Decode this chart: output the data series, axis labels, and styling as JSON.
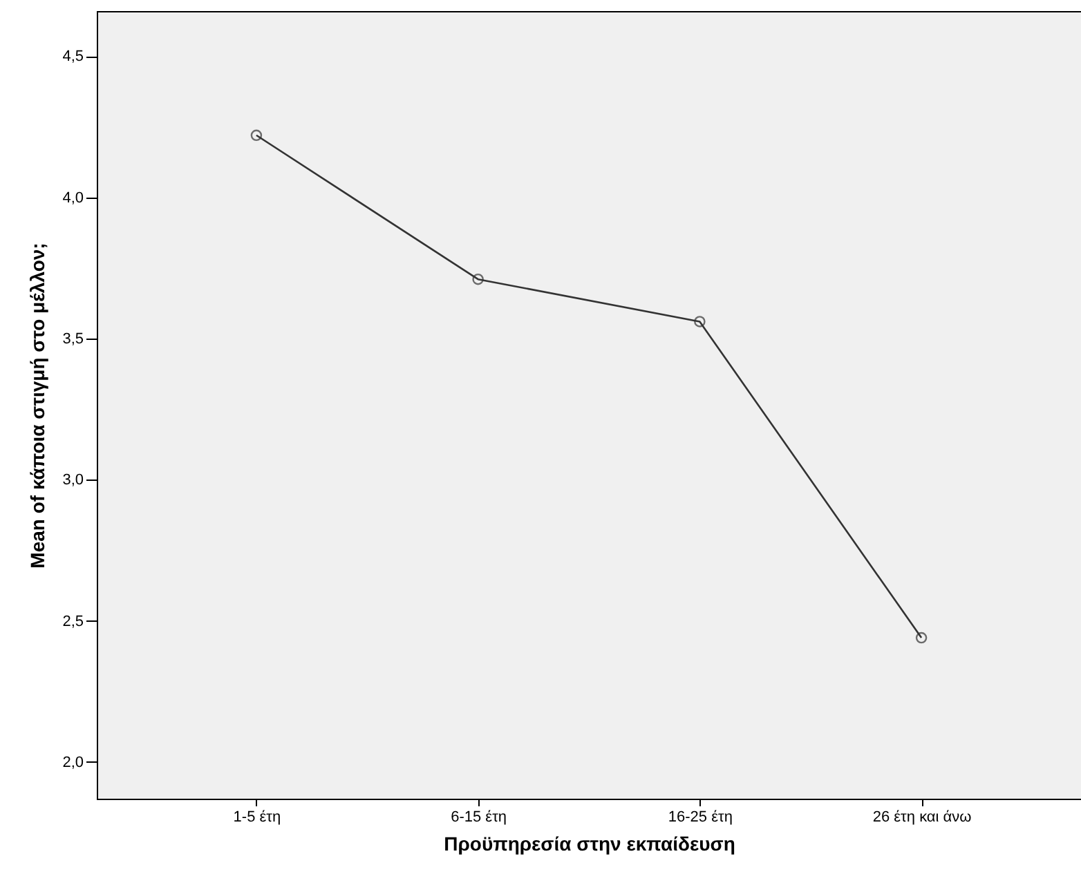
{
  "chart_data": {
    "type": "line",
    "xlabel": "Προϋπηρεσία στην εκπαίδευση",
    "ylabel": "Mean of κάποια στιγμή στο μέλλον;",
    "categories": [
      "1-5 έτη",
      "6-15 έτη",
      "16-25 έτη",
      "26 έτη και άνω"
    ],
    "series": [
      {
        "color": "#333333",
        "values": [
          4.22,
          3.71,
          3.56,
          2.44
        ]
      }
    ],
    "ylim": [
      1.87,
      4.66
    ],
    "yticks": [
      {
        "value": 2.0,
        "label": "2,0"
      },
      {
        "value": 2.5,
        "label": "2,5"
      },
      {
        "value": 3.0,
        "label": "3,0"
      },
      {
        "value": 3.5,
        "label": "3,5"
      },
      {
        "value": 4.0,
        "label": "4,0"
      },
      {
        "value": 4.5,
        "label": "4,5"
      }
    ],
    "marker": "circle",
    "line_style": "solid",
    "grid": false
  }
}
